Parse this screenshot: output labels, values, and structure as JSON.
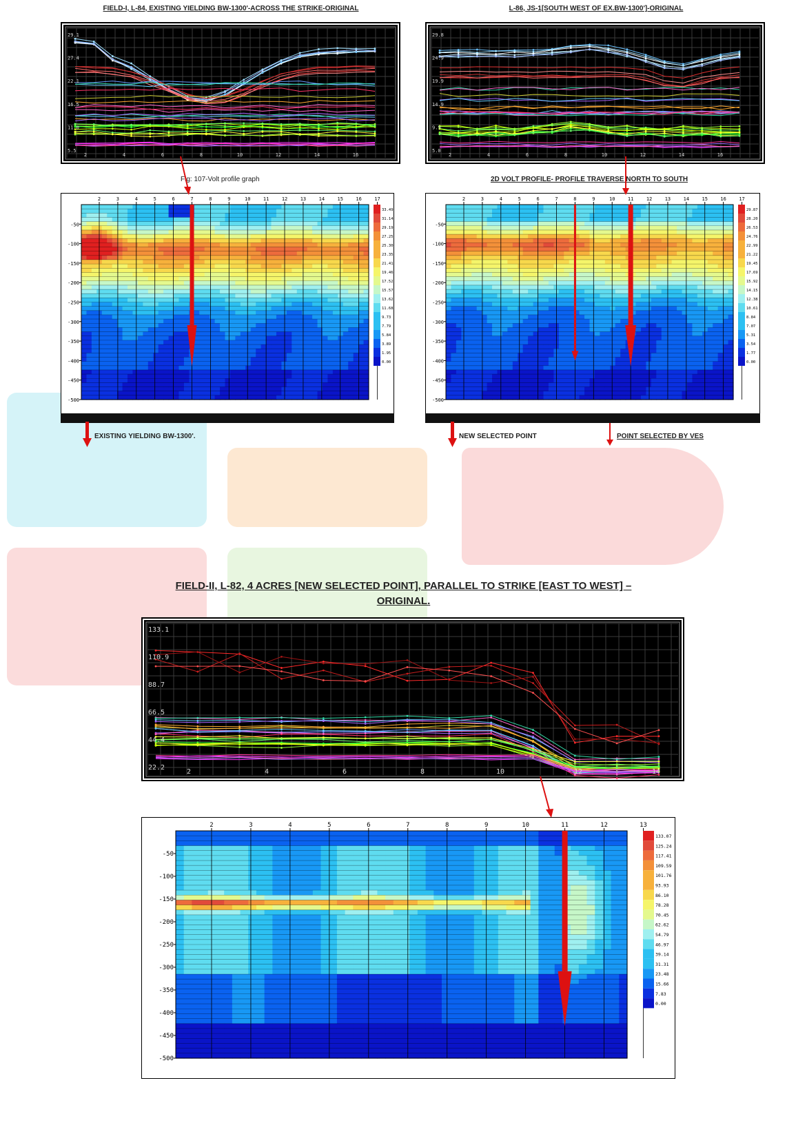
{
  "titles": {
    "top_left": "FIELD-I, L-84, EXISTING YIELDING BW-1300'-ACROSS THE STRIKE-ORIGINAL",
    "top_right": "L-86, JS-1[SOUTH WEST OF EX.BW-1300']-ORIGINAL",
    "fig_caption": "Fig: 107-Volt profile graph",
    "profile_2d": "2D VOLT PROFILE- PROFILE TRAVERSE NORTH TO SOUTH",
    "field2_line1": "FIELD-II, L-82, 4 ACRES [NEW SELECTED POINT], PARALLEL TO STRIKE [EAST TO WEST] –",
    "field2_line2": "ORIGINAL."
  },
  "annotations": {
    "existing": "EXISTING YIELDING BW-1300'.",
    "new_point": "NEW SELECTED POINT",
    "ves_point": "POINT SELECTED BY VES"
  },
  "colors": {
    "arrow": "#dd1111",
    "panel_bg": "#000000",
    "deep_blue": "#0b24c8"
  },
  "chart_data": [
    {
      "id": "line_top_left",
      "type": "line",
      "y_ticks": [
        "29.1",
        "27.4",
        "22.1",
        "16.5",
        "11.0",
        "5.5"
      ],
      "x_ticks": [
        "2",
        "4",
        "6",
        "8",
        "10",
        "12",
        "14",
        "16"
      ]
    },
    {
      "id": "line_top_right",
      "type": "line",
      "y_ticks": [
        "29.8",
        "24.9",
        "19.9",
        "14.9",
        "9.9",
        "5.0"
      ],
      "x_ticks": [
        "2",
        "4",
        "6",
        "8",
        "10",
        "12",
        "14",
        "16"
      ]
    },
    {
      "id": "contour_left",
      "type": "heatmap",
      "x_ticks": [
        "2",
        "3",
        "4",
        "5",
        "6",
        "7",
        "8",
        "9",
        "10",
        "11",
        "12",
        "13",
        "14",
        "15",
        "16",
        "17"
      ],
      "y_ticks": [
        "-50",
        "-100",
        "-150",
        "-200",
        "-250",
        "-300",
        "-350",
        "-400",
        "-450",
        "-500"
      ],
      "legend": [
        "33.49",
        "31.14",
        "29.19",
        "27.25",
        "25.30",
        "23.35",
        "21.41",
        "19.46",
        "17.52",
        "15.57",
        "13.62",
        "11.68",
        "9.73",
        "7.79",
        "5.84",
        "3.89",
        "1.95",
        "0.00"
      ],
      "arrow_at": "7"
    },
    {
      "id": "contour_right",
      "type": "heatmap",
      "x_ticks": [
        "2",
        "3",
        "4",
        "5",
        "6",
        "7",
        "8",
        "9",
        "10",
        "11",
        "12",
        "13",
        "14",
        "15",
        "16",
        "17"
      ],
      "y_ticks": [
        "-50",
        "-100",
        "-150",
        "-200",
        "-250",
        "-300",
        "-350",
        "-400",
        "-450",
        "-500"
      ],
      "legend": [
        "29.87",
        "28.20",
        "26.53",
        "24.76",
        "22.99",
        "21.22",
        "19.45",
        "17.69",
        "15.92",
        "14.15",
        "12.38",
        "10.61",
        "8.84",
        "7.07",
        "5.31",
        "3.54",
        "1.77",
        "0.00"
      ],
      "arrows_at": [
        "8",
        "11"
      ]
    },
    {
      "id": "line_bottom",
      "type": "line",
      "y_ticks": [
        "133.1",
        "110.9",
        "88.7",
        "66.5",
        "44.4",
        "22.2"
      ],
      "x_ticks": [
        "2",
        "4",
        "6",
        "8",
        "10",
        "12",
        "14"
      ]
    },
    {
      "id": "contour_bottom",
      "type": "heatmap",
      "x_ticks": [
        "2",
        "3",
        "4",
        "5",
        "6",
        "7",
        "8",
        "9",
        "10",
        "11",
        "12",
        "13"
      ],
      "y_ticks": [
        "-50",
        "-100",
        "-150",
        "-200",
        "-250",
        "-300",
        "-350",
        "-400",
        "-450",
        "-500"
      ],
      "legend": [
        "133.07",
        "125.24",
        "117.41",
        "109.59",
        "101.76",
        "93.93",
        "86.10",
        "78.28",
        "70.45",
        "62.62",
        "54.79",
        "46.97",
        "39.14",
        "31.31",
        "23.48",
        "15.66",
        "7.83",
        "0.00"
      ],
      "arrow_at": "11"
    }
  ]
}
